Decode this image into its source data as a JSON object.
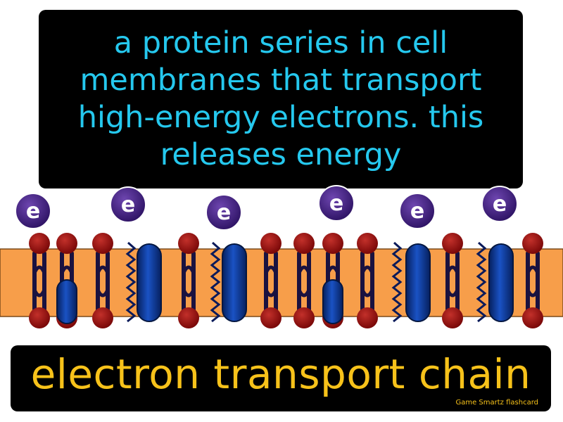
{
  "definition": "a protein series in cell membranes that transport high-energy electrons. this releases energy",
  "term": "electron transport chain",
  "brand": "Game Smartz  flashcard",
  "electron_label": "e",
  "colors": {
    "definition_text": "#25c8ee",
    "term_text": "#f7c21a",
    "membrane": "#f79e4a",
    "lipid_head": "#9b0d0d",
    "protein": "#0d3aa0",
    "electron": "#4a2585"
  }
}
